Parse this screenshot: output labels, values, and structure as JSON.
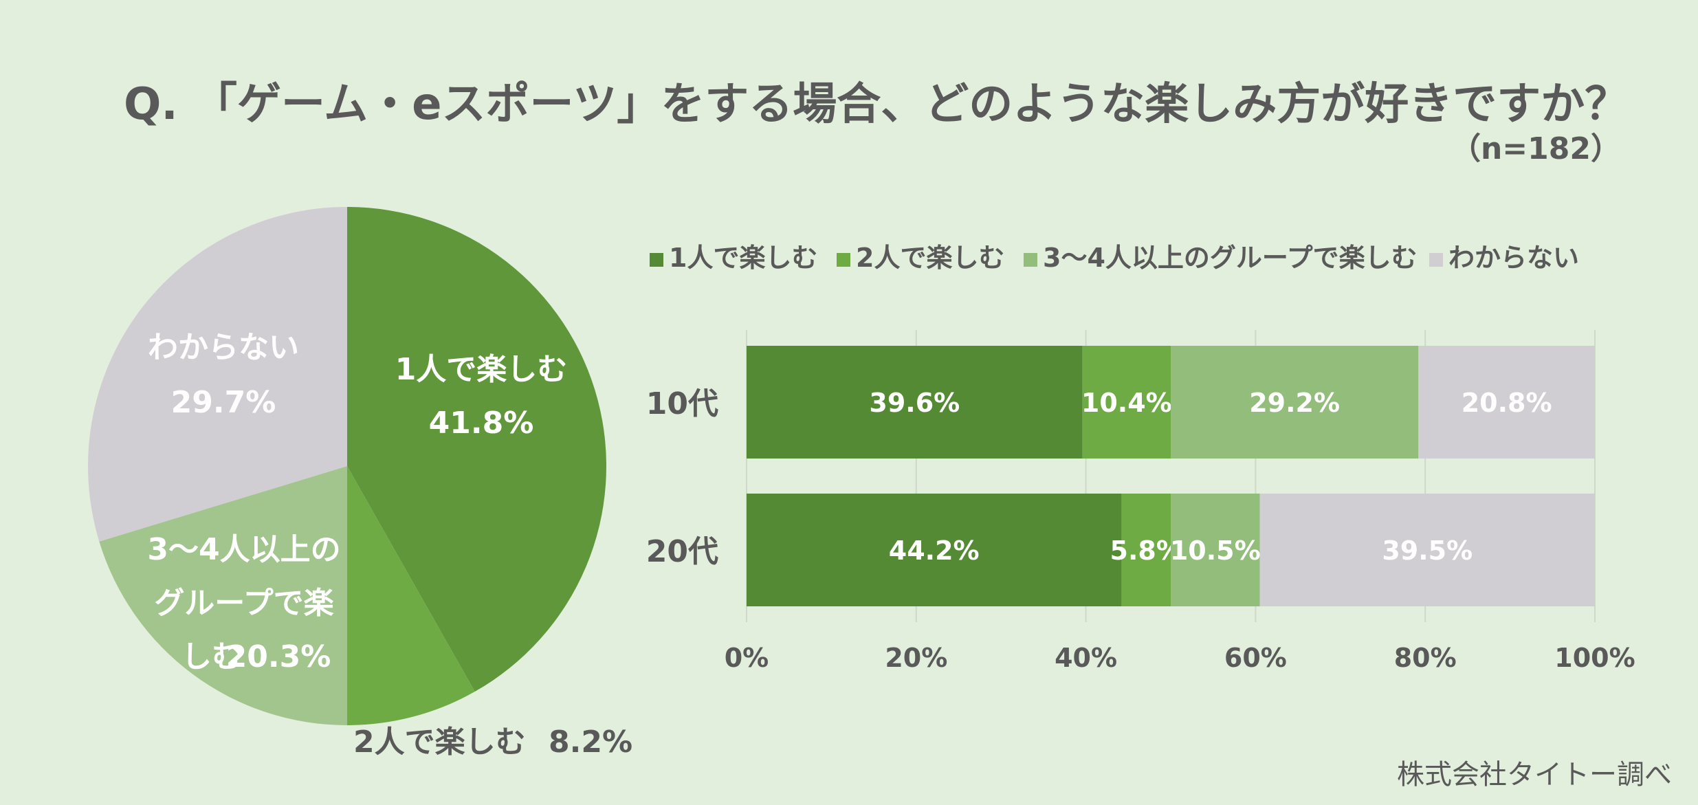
{
  "title": "Q. 「ゲーム・eスポーツ」をする場合、どのような楽しみ方が好きですか？",
  "sample": "（n=182）",
  "credit": "株式会社タイトー調べ",
  "colors": {
    "background": "#e2efdc",
    "solo": "#5f973a",
    "pair": "#6eab45",
    "group": "#a2c58d",
    "unknown": "#d0ced2",
    "text": "#595959",
    "white": "#ffffff"
  },
  "chart_data": [
    {
      "type": "pie",
      "slices": [
        {
          "label": "1人で楽しむ",
          "value": 41.8,
          "label_text": "41.8%",
          "color": "#5f973a"
        },
        {
          "label": "2人で楽しむ",
          "value": 8.2,
          "label_text": "8.2%",
          "color": "#6eab45"
        },
        {
          "label": "3〜4人以上のグループで楽しむ",
          "value": 20.3,
          "label_text": "20.3%",
          "color": "#a2c58d"
        },
        {
          "label": "わからない",
          "value": 29.7,
          "label_text": "29.7%",
          "color": "#d0ced2"
        }
      ]
    },
    {
      "type": "bar",
      "orientation": "horizontal",
      "stacked": "percent",
      "categories": [
        "10代",
        "20代"
      ],
      "series": [
        {
          "name": "1人で楽しむ",
          "values": [
            39.6,
            44.2
          ],
          "labels": [
            "39.6%",
            "44.2%"
          ],
          "color": "#558a35"
        },
        {
          "name": "2人で楽しむ",
          "values": [
            10.4,
            5.8
          ],
          "labels": [
            "10.4%",
            "5.8%"
          ],
          "color": "#6eab45"
        },
        {
          "name": "3〜4人以上のグループで楽しむ",
          "values": [
            29.2,
            10.5
          ],
          "labels": [
            "29.2%",
            "10.5%"
          ],
          "color": "#93bd7b"
        },
        {
          "name": "わからない",
          "values": [
            20.8,
            39.5
          ],
          "labels": [
            "20.8%",
            "39.5%"
          ],
          "color": "#d0ced2"
        }
      ],
      "xlim": [
        0,
        100
      ],
      "xticks": [
        "0%",
        "20%",
        "40%",
        "60%",
        "80%",
        "100%"
      ],
      "grid": true,
      "legend": "top"
    }
  ]
}
